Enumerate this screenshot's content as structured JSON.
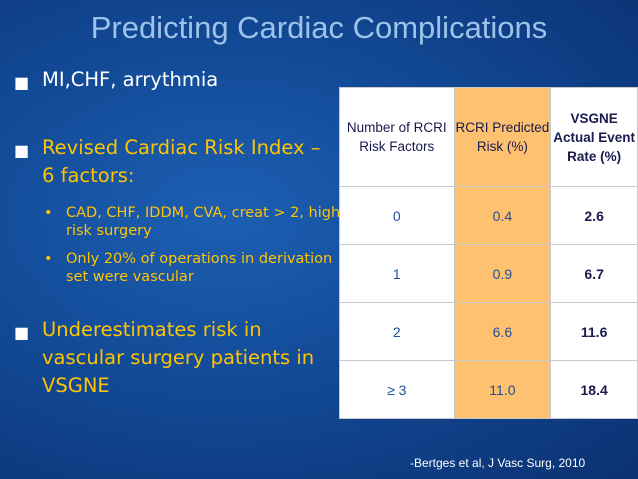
{
  "slide": {
    "title": "Predicting Cardiac Complications",
    "bullets": [
      {
        "mark": "■",
        "text": "MI,CHF, arrythmia"
      },
      {
        "mark": "■",
        "text": "Revised Cardiac Risk Index – 6 factors:"
      },
      {
        "mark": "■",
        "text": "Underestimates risk in vascular surgery patients in VSGNE"
      }
    ],
    "subbullets": [
      {
        "mark": "•",
        "text": "CAD, CHF, IDDM, CVA, creat > 2, high risk surgery"
      },
      {
        "mark": "•",
        "text": "Only 20% of operations in derivation set were vascular"
      }
    ],
    "citation": "-Bertges et al, J Vasc Surg, 2010",
    "colors": {
      "title": "#9ec3ea",
      "accent_text": "#ffc400",
      "highlight_column": "#fdc16f",
      "background": "#124a96"
    }
  },
  "table": {
    "headers": [
      "Number of RCRI Risk Factors",
      "RCRI Predicted Risk (%)",
      "VSGNE Actual Event Rate (%)"
    ],
    "rows": [
      [
        "0",
        "0.4",
        "2.6"
      ],
      [
        "1",
        "0.9",
        "6.7"
      ],
      [
        "2",
        "6.6",
        "11.6"
      ],
      [
        "≥ 3",
        "11.0",
        "18.4"
      ]
    ]
  }
}
